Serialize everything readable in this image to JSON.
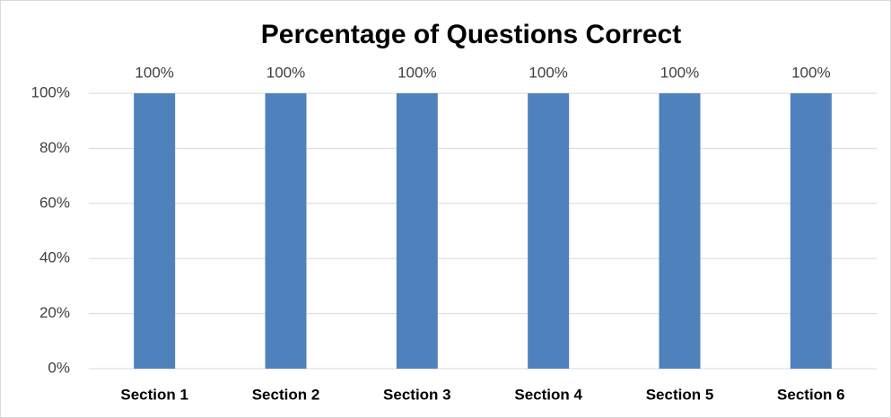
{
  "chart_data": {
    "type": "bar",
    "title": "Percentage of Questions Correct",
    "categories": [
      "Section 1",
      "Section 2",
      "Section 3",
      "Section 4",
      "Section 5",
      "Section 6"
    ],
    "values": [
      100,
      100,
      100,
      100,
      100,
      100
    ],
    "value_labels": [
      "100%",
      "100%",
      "100%",
      "100%",
      "100%",
      "100%"
    ],
    "color": "#4f81bd",
    "ylim": [
      0,
      100
    ],
    "yticks": [
      {
        "value": 0,
        "label": "0%"
      },
      {
        "value": 20,
        "label": "20%"
      },
      {
        "value": 40,
        "label": "40%"
      },
      {
        "value": 60,
        "label": "60%"
      },
      {
        "value": 80,
        "label": "80%"
      },
      {
        "value": 100,
        "label": "100%"
      }
    ],
    "grid": true
  }
}
